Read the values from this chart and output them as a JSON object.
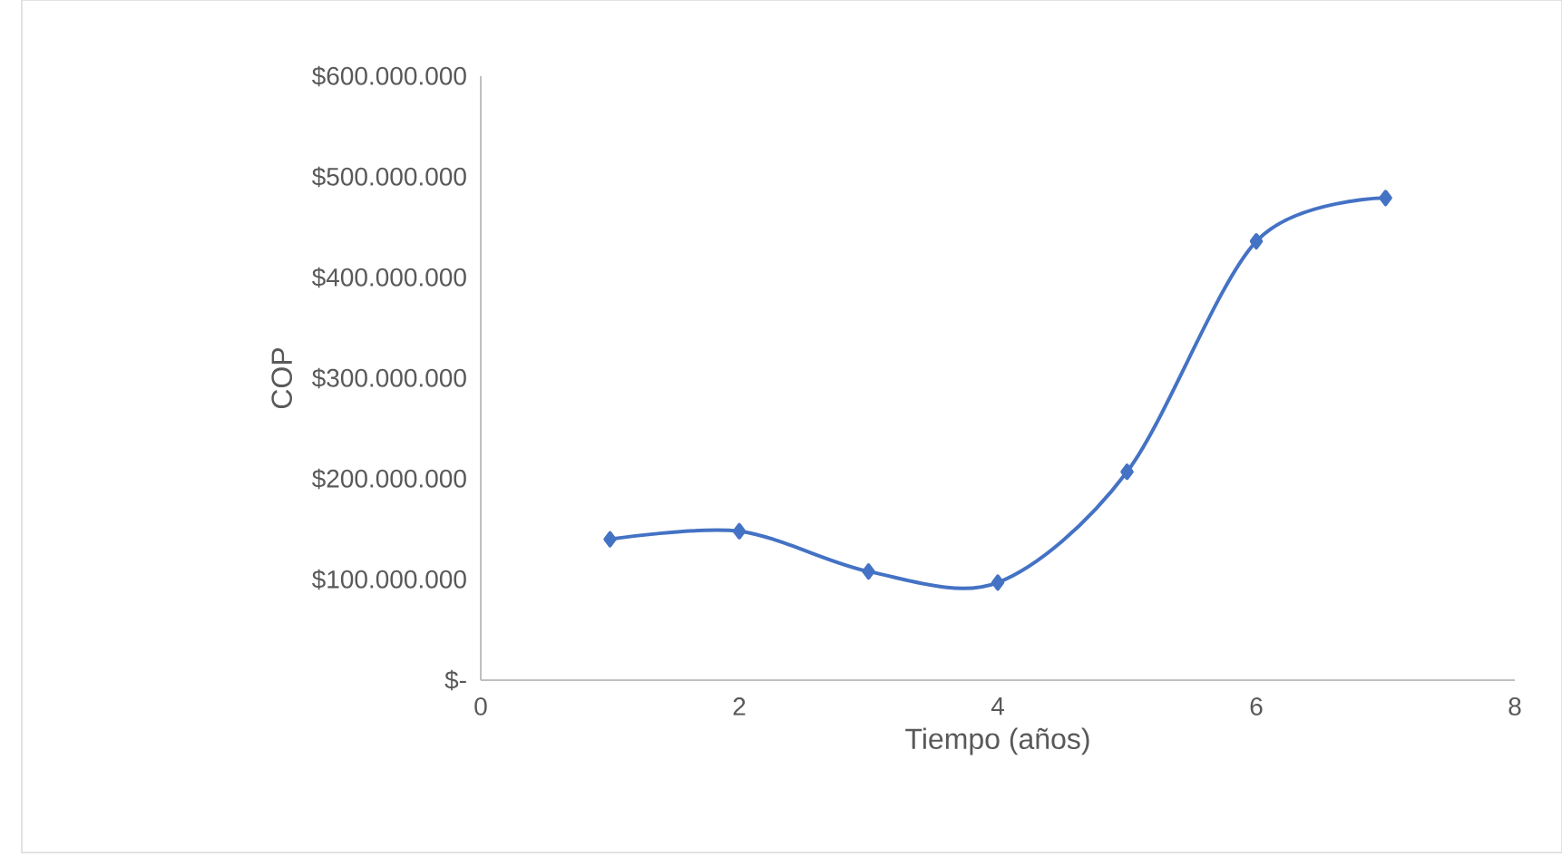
{
  "chart_data": {
    "type": "line",
    "xlabel": "Tiempo (años)",
    "ylabel": "COP",
    "x": [
      1,
      2,
      3,
      4,
      5,
      6,
      7
    ],
    "values": [
      140000000,
      148000000,
      108000000,
      97000000,
      207000000,
      436000000,
      479000000
    ],
    "color": "#4472c4",
    "marker": "diamond",
    "xlim": [
      0,
      8
    ],
    "xticks": [
      0,
      2,
      4,
      6,
      8
    ],
    "ylim": [
      0,
      600000000
    ],
    "yticks": [
      {
        "value": 0,
        "label": "$-"
      },
      {
        "value": 100000000,
        "label": "$100.000.000"
      },
      {
        "value": 200000000,
        "label": "$200.000.000"
      },
      {
        "value": 300000000,
        "label": "$300.000.000"
      },
      {
        "value": 400000000,
        "label": "$400.000.000"
      },
      {
        "value": 500000000,
        "label": "$500.000.000"
      },
      {
        "value": 600000000,
        "label": "$600.000.000"
      }
    ]
  }
}
